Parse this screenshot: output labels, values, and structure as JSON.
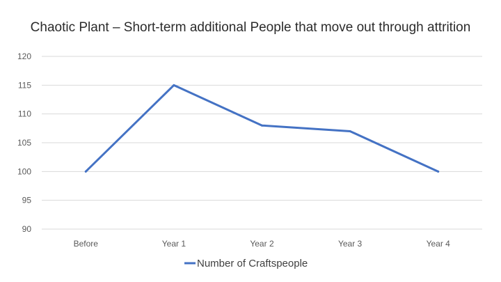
{
  "chart_data": {
    "type": "line",
    "title": "Chaotic Plant – Short-term additional People that move out through attrition",
    "categories": [
      "Before",
      "Year 1",
      "Year 2",
      "Year 3",
      "Year 4"
    ],
    "series": [
      {
        "name": "Number of Craftspeople",
        "values": [
          100,
          115,
          108,
          107,
          100
        ],
        "color": "#4472c4"
      }
    ],
    "ylim": [
      90,
      120
    ],
    "yticks": [
      90,
      95,
      100,
      105,
      110,
      115,
      120
    ],
    "grid": true,
    "legend": "bottom"
  }
}
